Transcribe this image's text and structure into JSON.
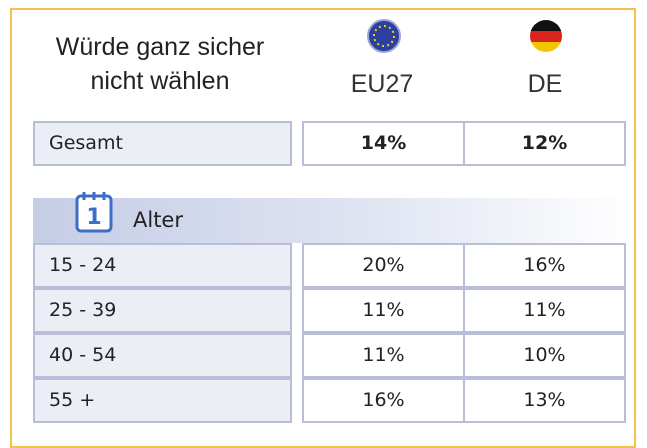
{
  "header": {
    "title": [
      "Würde ganz sicher",
      "nicht wählen"
    ],
    "columns": [
      "EU27",
      "DE"
    ]
  },
  "total": {
    "label": "Gesamt",
    "values": [
      "14%",
      "12%"
    ]
  },
  "section": {
    "icon_label": "1",
    "title": "Alter",
    "rows": [
      {
        "label": "15 - 24",
        "values": [
          "20%",
          "16%"
        ]
      },
      {
        "label": "25 - 39",
        "values": [
          "11%",
          "11%"
        ]
      },
      {
        "label": "40 - 54",
        "values": [
          "11%",
          "10%"
        ]
      },
      {
        "label": "55 +",
        "values": [
          "16%",
          "13%"
        ]
      }
    ]
  }
}
